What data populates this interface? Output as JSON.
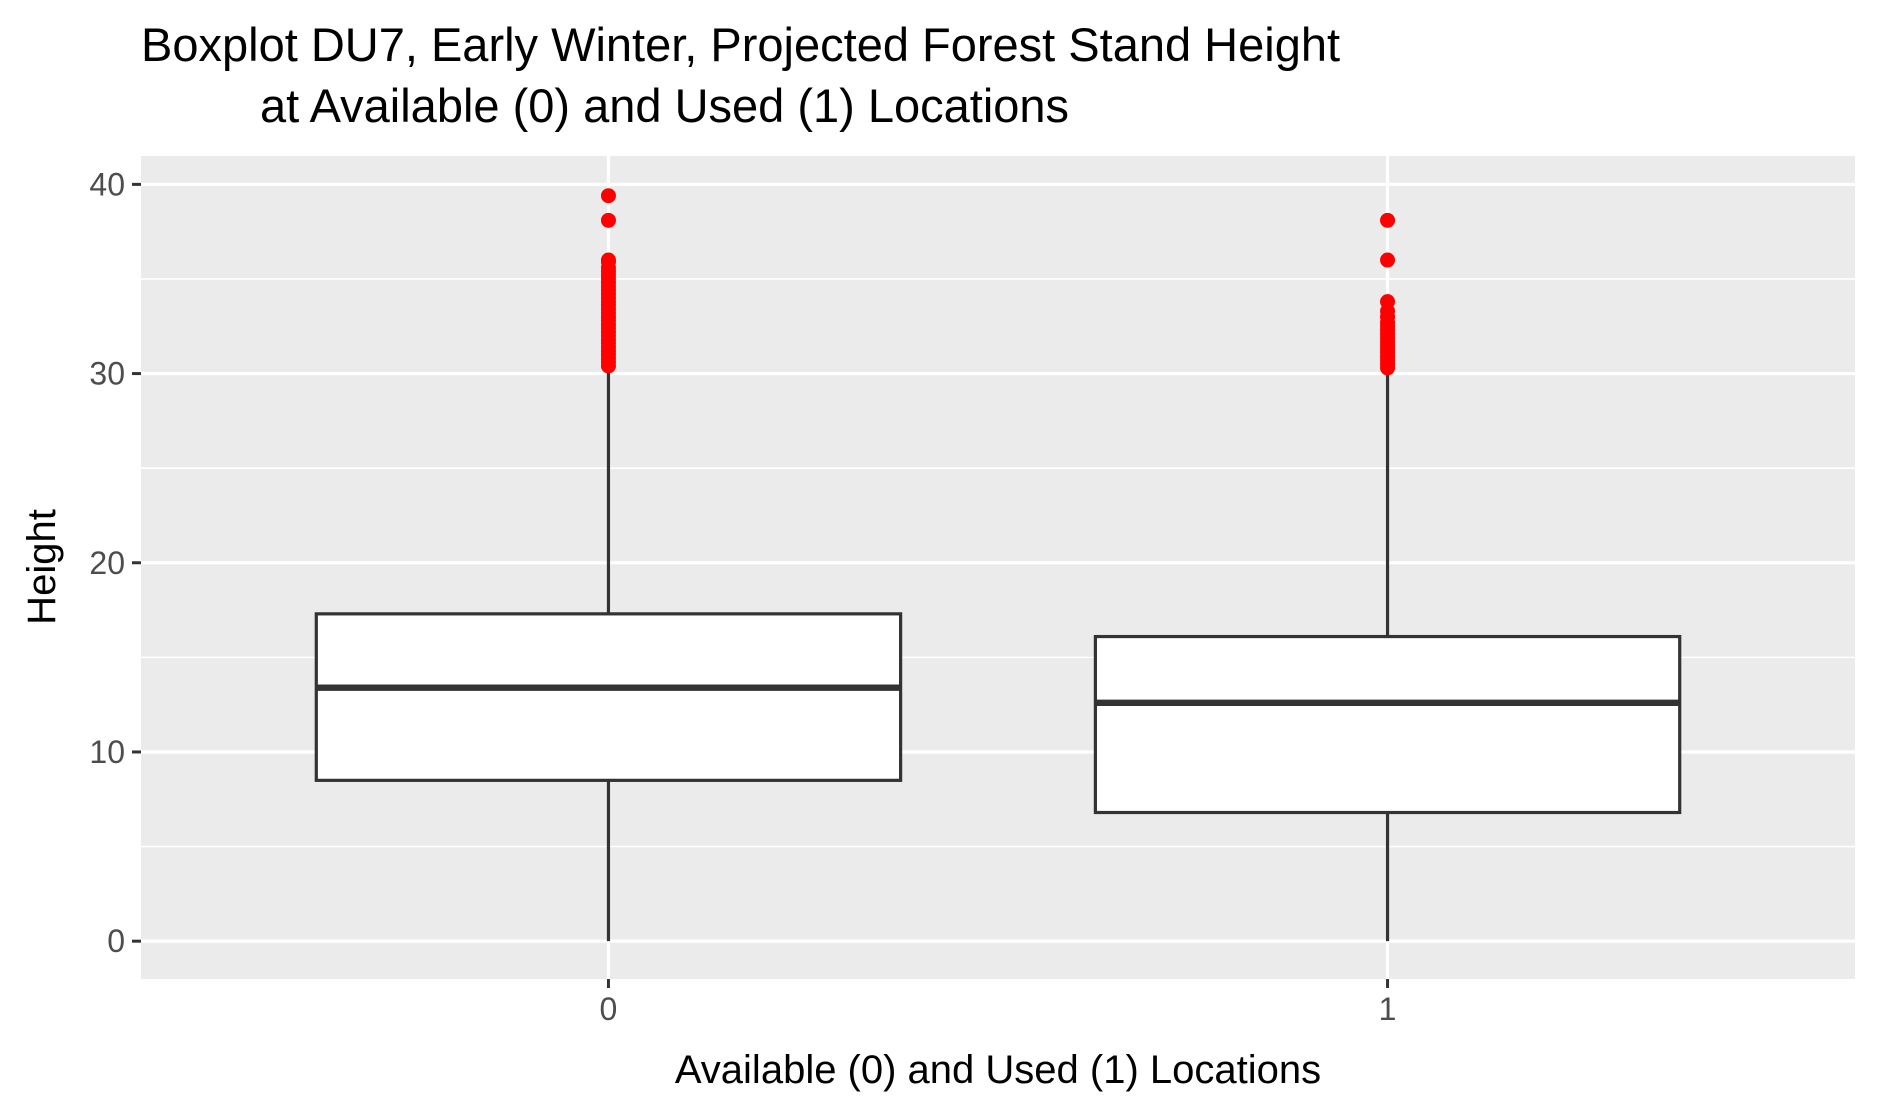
{
  "chart_data": {
    "type": "box",
    "title": "Boxplot DU7, Early Winter, Projected Forest Stand Height",
    "subtitle": "at Available (0) and Used (1) Locations",
    "xlabel": "Available (0) and Used (1) Locations",
    "ylabel": "Height",
    "categories": [
      "0",
      "1"
    ],
    "ylim": [
      -2,
      41.5
    ],
    "yticks": [
      0,
      10,
      20,
      30,
      40
    ],
    "grid": true,
    "background": "#ebebeb",
    "outlier_color": "#ff0000",
    "boxes": [
      {
        "category": "0",
        "whisker_low": 0,
        "q1": 8.5,
        "median": 13.4,
        "q3": 17.3,
        "whisker_high": 30.3,
        "outliers": [
          30.4,
          30.6,
          30.8,
          31.0,
          31.2,
          31.4,
          31.6,
          31.8,
          32.0,
          32.2,
          32.4,
          32.6,
          32.8,
          33.0,
          33.2,
          33.4,
          33.6,
          33.8,
          34.0,
          34.2,
          34.4,
          34.6,
          34.8,
          35.0,
          35.2,
          35.4,
          35.6,
          35.9,
          36.0,
          38.1,
          39.4
        ]
      },
      {
        "category": "1",
        "whisker_low": 0,
        "q1": 6.8,
        "median": 12.6,
        "q3": 16.1,
        "whisker_high": 30.2,
        "outliers": [
          30.3,
          30.5,
          30.7,
          30.9,
          31.1,
          31.3,
          31.5,
          31.7,
          31.9,
          32.1,
          32.3,
          32.5,
          32.7,
          33.0,
          33.3,
          33.8,
          36.0,
          38.1
        ]
      }
    ]
  }
}
